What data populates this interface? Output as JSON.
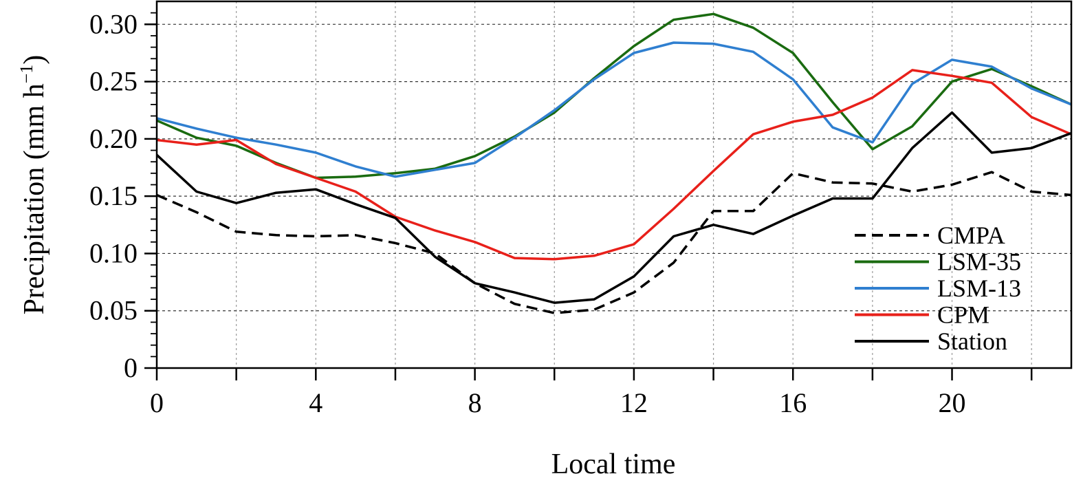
{
  "chart_data": {
    "type": "line",
    "xlabel": "Local time",
    "ylabel": "Precipitation (mm h",
    "ylabel_sup": "−1",
    "ylabel_close": ")",
    "xlim": [
      0,
      23
    ],
    "ylim": [
      0,
      0.32
    ],
    "x_ticks": [
      0,
      4,
      8,
      12,
      16,
      20
    ],
    "x_tick_labels": [
      "0",
      "4",
      "8",
      "12",
      "16",
      "20"
    ],
    "x_minor_ticks": [
      2,
      6,
      10,
      14,
      18,
      22
    ],
    "y_ticks": [
      0,
      0.05,
      0.1,
      0.15,
      0.2,
      0.25,
      0.3
    ],
    "y_tick_labels": [
      "0",
      "0.05",
      "0.10",
      "0.15",
      "0.20",
      "0.25",
      "0.30"
    ],
    "grid": true,
    "legend_position": "bottom-right",
    "x": [
      0,
      1,
      2,
      3,
      4,
      5,
      6,
      7,
      8,
      9,
      10,
      11,
      12,
      13,
      14,
      15,
      16,
      17,
      18,
      19,
      20,
      21,
      22,
      23
    ],
    "series": [
      {
        "name": "CMPA",
        "color": "#000000",
        "dashed": true,
        "values": [
          0.151,
          0.136,
          0.119,
          0.116,
          0.115,
          0.116,
          0.109,
          0.1,
          0.074,
          0.056,
          0.048,
          0.051,
          0.066,
          0.092,
          0.137,
          0.137,
          0.17,
          0.162,
          0.161,
          0.154,
          0.16,
          0.171,
          0.154,
          0.151
        ]
      },
      {
        "name": "LSM-35",
        "color": "#1a6b10",
        "dashed": false,
        "values": [
          0.216,
          0.201,
          0.194,
          0.179,
          0.166,
          0.167,
          0.17,
          0.174,
          0.185,
          0.202,
          0.223,
          0.253,
          0.281,
          0.304,
          0.309,
          0.297,
          0.275,
          0.232,
          0.191,
          0.211,
          0.25,
          0.261,
          0.246,
          0.23
        ]
      },
      {
        "name": "LSM-13",
        "color": "#2f7fd0",
        "dashed": false,
        "values": [
          0.218,
          0.209,
          0.201,
          0.195,
          0.188,
          0.176,
          0.167,
          0.173,
          0.179,
          0.201,
          0.225,
          0.252,
          0.275,
          0.284,
          0.283,
          0.276,
          0.252,
          0.21,
          0.197,
          0.248,
          0.269,
          0.263,
          0.244,
          0.23
        ]
      },
      {
        "name": "CPM",
        "color": "#e8201a",
        "dashed": false,
        "values": [
          0.199,
          0.195,
          0.199,
          0.178,
          0.166,
          0.154,
          0.132,
          0.12,
          0.11,
          0.096,
          0.095,
          0.098,
          0.108,
          0.139,
          0.172,
          0.204,
          0.215,
          0.221,
          0.236,
          0.26,
          0.255,
          0.249,
          0.219,
          0.204
        ]
      },
      {
        "name": "Station",
        "color": "#000000",
        "dashed": false,
        "values": [
          0.186,
          0.154,
          0.144,
          0.153,
          0.156,
          0.143,
          0.131,
          0.097,
          0.074,
          0.066,
          0.057,
          0.06,
          0.08,
          0.115,
          0.125,
          0.117,
          0.133,
          0.148,
          0.148,
          0.192,
          0.223,
          0.188,
          0.192,
          0.205
        ]
      }
    ]
  }
}
